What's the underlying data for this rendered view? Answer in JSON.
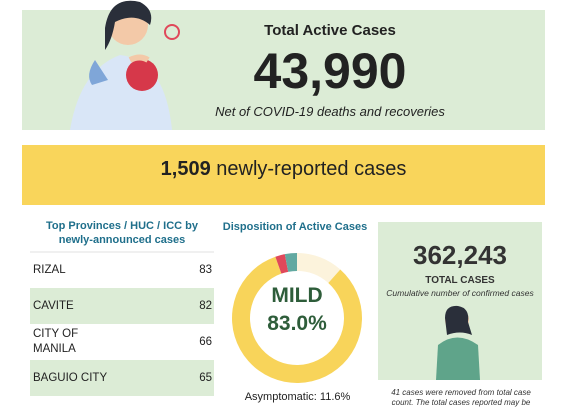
{
  "header": {
    "title": "Total Active Cases",
    "value": "43,990",
    "subtitle": "Net of COVID-19 deaths and recoveries"
  },
  "banner": {
    "number": "1,509",
    "text": "newly-reported cases"
  },
  "provinces": {
    "title": "Top Provinces / HUC / ICC by newly-announced cases",
    "rows": [
      [
        "RIZAL",
        "83"
      ],
      [
        "CAVITE",
        "82"
      ],
      [
        "CITY OF MANILA",
        "66"
      ],
      [
        "BAGUIO CITY",
        "65"
      ]
    ]
  },
  "disposition": {
    "title": "Disposition of Active Cases",
    "center_label": "MILD",
    "center_value": "83.0%",
    "footnote": "Asymptomatic: 11.6%",
    "segments": [
      {
        "value": 11.6,
        "color": "#fcf3dc"
      },
      {
        "value": 83.0,
        "color": "#f8d45a"
      },
      {
        "value": 2.4,
        "color": "#e0485a"
      },
      {
        "value": 3.0,
        "color": "#62a9a1"
      }
    ]
  },
  "total": {
    "value": "362,243",
    "label": "TOTAL CASES",
    "subtitle": "Cumulative number of confirmed cases",
    "note": "41 cases were removed from total case count. The total cases reported may be"
  }
}
